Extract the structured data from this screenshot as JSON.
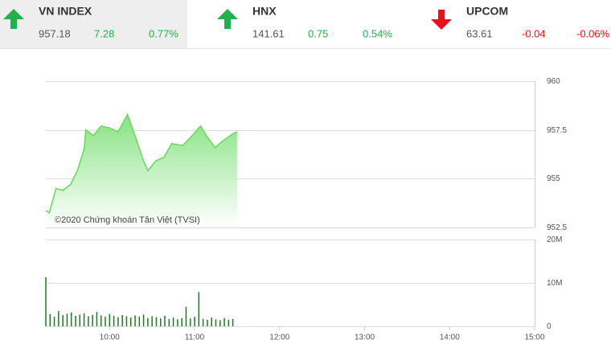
{
  "header": {
    "indices": [
      {
        "name": "VN INDEX",
        "value": 957.18,
        "change": 7.28,
        "percent": "0.77%",
        "direction": "up",
        "color": "#22b14c",
        "selected": true
      },
      {
        "name": "HNX",
        "value": 141.61,
        "change": 0.75,
        "percent": "0.54%",
        "direction": "up",
        "color": "#22b14c",
        "selected": false
      },
      {
        "name": "UPCOM",
        "value": 63.61,
        "change": -0.04,
        "percent": "-0.06%",
        "direction": "down",
        "color": "#e8101a",
        "selected": false
      }
    ]
  },
  "chart_data": [
    {
      "type": "area",
      "watermark": "©2020 Chứng khoán Tân Việt (TVSI)",
      "color": "#66d95a",
      "x": [
        9.25,
        9.29,
        9.37,
        9.45,
        9.54,
        9.62,
        9.7,
        9.72,
        9.81,
        9.9,
        10,
        10.1,
        10.21,
        10.3,
        10.4,
        10.45,
        10.54,
        10.64,
        10.73,
        10.86,
        10.97,
        11.07,
        11.14,
        11.24,
        11.35,
        11.45,
        11.5
      ],
      "values": [
        953.37,
        953.24,
        954.5,
        954.4,
        954.7,
        955.4,
        956.5,
        957.5,
        957.2,
        957.7,
        957.6,
        957.4,
        958.3,
        957.2,
        955.9,
        955.4,
        955.9,
        956.1,
        956.8,
        956.7,
        957.2,
        957.7,
        957.2,
        956.6,
        957.0,
        957.3,
        957.4
      ],
      "xlim": [
        9.25,
        15
      ],
      "ylim": [
        952.5,
        960
      ],
      "yticks": [
        952.5,
        955,
        957.5,
        960
      ],
      "grid": true
    },
    {
      "type": "bar",
      "color": "#1f7a1f",
      "x": [
        9.25,
        9.3,
        9.35,
        9.4,
        9.45,
        9.5,
        9.55,
        9.6,
        9.65,
        9.7,
        9.75,
        9.8,
        9.85,
        9.9,
        9.95,
        10,
        10.05,
        10.1,
        10.15,
        10.2,
        10.25,
        10.3,
        10.35,
        10.4,
        10.45,
        10.5,
        10.55,
        10.6,
        10.65,
        10.7,
        10.75,
        10.8,
        10.85,
        10.9,
        10.95,
        11,
        11.05,
        11.1,
        11.15,
        11.2,
        11.25,
        11.3,
        11.35,
        11.4,
        11.45
      ],
      "values": [
        11300000,
        2800000,
        2200000,
        3500000,
        2600000,
        2900000,
        3200000,
        2400000,
        2700000,
        3000000,
        2300000,
        2600000,
        3300000,
        2500000,
        2200000,
        2800000,
        2400000,
        2100000,
        2600000,
        2300000,
        2000000,
        2500000,
        2200000,
        2700000,
        1900000,
        2300000,
        2100000,
        1800000,
        2400000,
        1700000,
        2000000,
        1600000,
        1900000,
        4500000,
        1800000,
        2200000,
        7900000,
        1700000,
        1500000,
        2000000,
        1600000,
        1400000,
        1900000,
        1500000,
        1700000
      ],
      "xlim": [
        9.25,
        15
      ],
      "ylim": [
        0,
        20000000
      ],
      "yticks": [
        0,
        {
          "value": 10000000,
          "label": "10M"
        },
        {
          "value": 20000000,
          "label": "20M"
        }
      ],
      "xticks": [
        {
          "value": 10,
          "label": "10:00"
        },
        {
          "value": 11,
          "label": "11:00"
        },
        {
          "value": 12,
          "label": "12:00"
        },
        {
          "value": 13,
          "label": "13:00"
        },
        {
          "value": 14,
          "label": "14:00"
        },
        {
          "value": 15,
          "label": "15:00"
        }
      ],
      "grid": true
    }
  ]
}
